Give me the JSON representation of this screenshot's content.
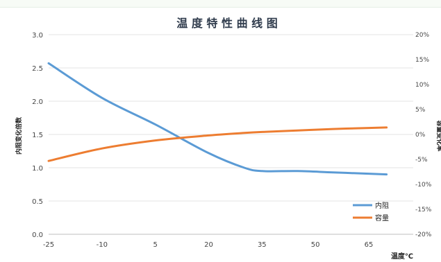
{
  "chart_data": {
    "type": "line",
    "title": "温 度 特 性 曲 线 图",
    "xlabel": "温度℃",
    "ylabel_left": "内阻变化倍数",
    "ylabel_right": "容量变化率",
    "x_ticks": [
      "-25",
      "-10",
      "5",
      "20",
      "35",
      "50",
      "65"
    ],
    "y_left": {
      "min": 0,
      "max": 3.0,
      "ticks": [
        "0.0",
        "0.5",
        "1.0",
        "1.5",
        "2.0",
        "2.5",
        "3.0"
      ]
    },
    "y_right": {
      "min": -20,
      "max": 20,
      "ticks": [
        "-20%",
        "-15%",
        "-10%",
        "-5%",
        "0%",
        "5%",
        "10%",
        "15%",
        "20%"
      ]
    },
    "grid": true,
    "legend_placement": "bottom-right",
    "series": [
      {
        "name": "内阻",
        "axis": "left",
        "color": "#5b9bd5",
        "x": [
          -25,
          -10,
          5,
          20,
          30,
          35,
          45,
          55,
          65,
          70
        ],
        "y": [
          2.57,
          2.05,
          1.65,
          1.22,
          1.0,
          0.95,
          0.95,
          0.93,
          0.91,
          0.9
        ]
      },
      {
        "name": "容量",
        "axis": "right",
        "color": "#ed7d31",
        "x": [
          -25,
          -10,
          5,
          20,
          30,
          35,
          45,
          55,
          65,
          70
        ],
        "y": [
          -5.3,
          -2.8,
          -1.2,
          -0.2,
          0.3,
          0.5,
          0.8,
          1.1,
          1.3,
          1.4
        ]
      }
    ]
  }
}
